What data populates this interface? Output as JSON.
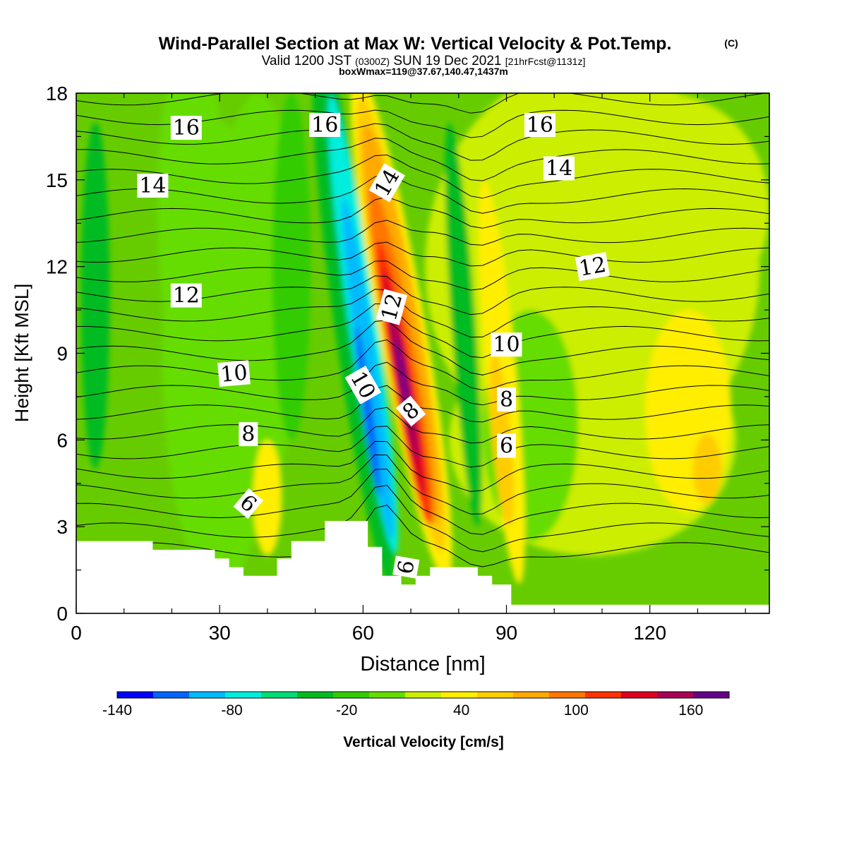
{
  "chart_data": {
    "type": "heatmap",
    "title": "Wind-Parallel Section at Max W: Vertical Velocity & Pot.Temp.",
    "copyright": "(C)",
    "subtitle_main": "Valid 1200 JST",
    "subtitle_z": "(0300Z)",
    "subtitle_date": "SUN 19 Dec 2021",
    "subtitle_fcst": "[21hrFcst@1131z]",
    "subtitle2": "boxWmax=119@37.67,140.47,1437m",
    "xlabel": "Distance [nm]",
    "ylabel": "Height [Kft MSL]",
    "xlim": [
      0,
      145
    ],
    "ylim": [
      0,
      18
    ],
    "xticks": [
      0,
      30,
      60,
      90,
      120
    ],
    "yticks": [
      0,
      3,
      6,
      9,
      12,
      15,
      18
    ],
    "colorbar": {
      "label": "Vertical Velocity [cm/s]",
      "range": [
        -140,
        180
      ],
      "tick_values": [
        -140,
        -80,
        -20,
        40,
        100,
        160
      ],
      "tick_labels": [
        "-140",
        "-80",
        "-20",
        "40",
        "100",
        "160"
      ],
      "colors": [
        "#0000ff",
        "#0066ff",
        "#00bbff",
        "#00eedd",
        "#00dd77",
        "#00bb22",
        "#33cc00",
        "#66dd00",
        "#ccee00",
        "#ffee00",
        "#ffcc00",
        "#ffaa00",
        "#ff7700",
        "#ff3300",
        "#dd0022",
        "#aa0055",
        "#660088"
      ]
    },
    "terrain_kft": [
      [
        0,
        2.5
      ],
      [
        16,
        2.5
      ],
      [
        16,
        2.2
      ],
      [
        29,
        2.2
      ],
      [
        29,
        1.9
      ],
      [
        32,
        1.9
      ],
      [
        32,
        1.6
      ],
      [
        35,
        1.6
      ],
      [
        35,
        1.3
      ],
      [
        42,
        1.3
      ],
      [
        42,
        1.9
      ],
      [
        45,
        1.9
      ],
      [
        45,
        2.5
      ],
      [
        52,
        2.5
      ],
      [
        52,
        3.2
      ],
      [
        61,
        3.2
      ],
      [
        61,
        2.3
      ],
      [
        64,
        2.3
      ],
      [
        64,
        1.3
      ],
      [
        68,
        1.3
      ],
      [
        68,
        1.0
      ],
      [
        71,
        1.0
      ],
      [
        71,
        1.3
      ],
      [
        74,
        1.3
      ],
      [
        74,
        1.6
      ],
      [
        84,
        1.6
      ],
      [
        84,
        1.3
      ],
      [
        87,
        1.3
      ],
      [
        87,
        1.0
      ],
      [
        91,
        1.0
      ],
      [
        91,
        0.3
      ],
      [
        145,
        0.3
      ]
    ],
    "theta_contour_labels": [
      {
        "text": "16",
        "x": 23,
        "y": 16.8,
        "angle": 0
      },
      {
        "text": "16",
        "x": 52,
        "y": 16.9,
        "angle": 0
      },
      {
        "text": "16",
        "x": 97,
        "y": 16.9,
        "angle": 0
      },
      {
        "text": "14",
        "x": 16,
        "y": 14.8,
        "angle": 0
      },
      {
        "text": "14",
        "x": 65,
        "y": 14.9,
        "angle": -60
      },
      {
        "text": "14",
        "x": 101,
        "y": 15.4,
        "angle": 0
      },
      {
        "text": "12",
        "x": 23,
        "y": 11.0,
        "angle": 0
      },
      {
        "text": "12",
        "x": 66,
        "y": 10.6,
        "angle": -75
      },
      {
        "text": "12",
        "x": 108,
        "y": 12.0,
        "angle": -10
      },
      {
        "text": "10",
        "x": 33,
        "y": 8.3,
        "angle": -5
      },
      {
        "text": "10",
        "x": 60,
        "y": 7.9,
        "angle": 60
      },
      {
        "text": "10",
        "x": 90,
        "y": 9.3,
        "angle": 0
      },
      {
        "text": "8",
        "x": 36,
        "y": 6.2,
        "angle": 0
      },
      {
        "text": "8",
        "x": 70,
        "y": 7.0,
        "angle": -40
      },
      {
        "text": "8",
        "x": 90,
        "y": 7.4,
        "angle": 0
      },
      {
        "text": "6",
        "x": 36,
        "y": 3.8,
        "angle": 40
      },
      {
        "text": "6",
        "x": 69,
        "y": 1.6,
        "angle": -80
      },
      {
        "text": "6",
        "x": 90,
        "y": 5.8,
        "angle": 0
      }
    ]
  }
}
